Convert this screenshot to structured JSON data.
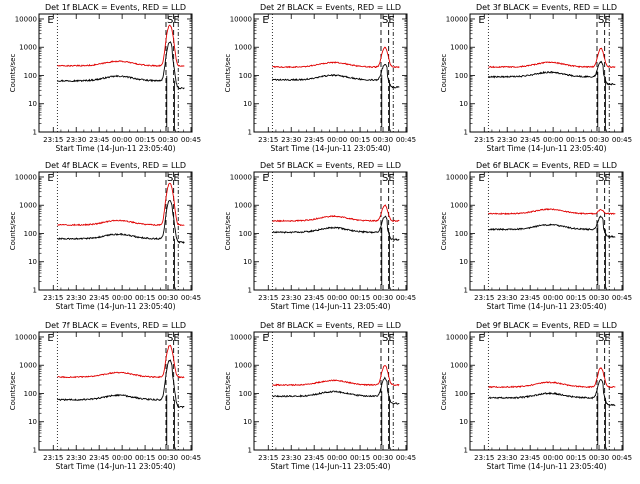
{
  "figure": {
    "xlabel": "Start Time (14-Jun-11 23:05:40)",
    "ylabel": "Counts/sec",
    "x_ticks": [
      "23:15",
      "23:30",
      "23:45",
      "00:00",
      "00:15",
      "00:30",
      "00:45"
    ],
    "y_ticks": [
      "1",
      "10",
      "100",
      "1000",
      "10000"
    ],
    "colors": {
      "events": "#000000",
      "lld": "#e00000",
      "axes": "#000000",
      "background": "#ffffff"
    }
  },
  "chart_data": [
    {
      "type": "line",
      "title": "Det 1f BLACK = Events, RED = LLD",
      "markers": [
        "E",
        "SE"
      ],
      "xlabel": "Start Time (14-Jun-11 23:05:40)",
      "ylabel": "Counts/sec",
      "ylim": [
        1,
        15000
      ],
      "yscale": "log",
      "x_range_minutes": [
        0,
        100
      ],
      "series": [
        {
          "name": "Events",
          "color": "#000000",
          "base": 65,
          "peak": 1500,
          "dip": "deep"
        },
        {
          "name": "LLD",
          "color": "#e00000",
          "base": 220,
          "peak": 6000
        }
      ],
      "x_ticks": [
        "23:15",
        "23:30",
        "23:45",
        "00:00",
        "00:15",
        "00:30",
        "00:45"
      ],
      "vlines_minutes": [
        12,
        83,
        88,
        91
      ]
    },
    {
      "type": "line",
      "title": "Det 2f BLACK = Events, RED = LLD",
      "markers": [
        "E",
        "SE"
      ],
      "xlabel": "Start Time (14-Jun-11 23:05:40)",
      "ylabel": "Counts/sec",
      "ylim": [
        1,
        15000
      ],
      "yscale": "log",
      "x_range_minutes": [
        0,
        100
      ],
      "series": [
        {
          "name": "Events",
          "color": "#000000",
          "base": 70,
          "peak": 250,
          "dip": "deep"
        },
        {
          "name": "LLD",
          "color": "#e00000",
          "base": 200,
          "peak": 1000
        }
      ],
      "x_ticks": [
        "23:15",
        "23:30",
        "23:45",
        "00:00",
        "00:15",
        "00:30",
        "00:45"
      ],
      "vlines_minutes": [
        12,
        83,
        88,
        91
      ]
    },
    {
      "type": "line",
      "title": "Det 3f BLACK = Events, RED = LLD",
      "markers": [
        "E",
        "SE"
      ],
      "xlabel": "Start Time (14-Jun-11 23:05:40)",
      "ylabel": "Counts/sec",
      "ylim": [
        1,
        15000
      ],
      "yscale": "log",
      "x_range_minutes": [
        0,
        100
      ],
      "series": [
        {
          "name": "Events",
          "color": "#000000",
          "base": 90,
          "peak": 300,
          "dip": "deep"
        },
        {
          "name": "LLD",
          "color": "#e00000",
          "base": 200,
          "peak": 900
        }
      ],
      "x_ticks": [
        "23:15",
        "23:30",
        "23:45",
        "00:00",
        "00:15",
        "00:30",
        "00:45"
      ],
      "vlines_minutes": [
        12,
        83,
        88,
        91
      ]
    },
    {
      "type": "line",
      "title": "Det 4f BLACK = Events, RED = LLD",
      "markers": [
        "E",
        "SE"
      ],
      "xlabel": "Start Time (14-Jun-11 23:05:40)",
      "ylabel": "Counts/sec",
      "ylim": [
        1,
        15000
      ],
      "yscale": "log",
      "x_range_minutes": [
        0,
        100
      ],
      "series": [
        {
          "name": "Events",
          "color": "#000000",
          "base": 65,
          "peak": 1500,
          "dip": "mild"
        },
        {
          "name": "LLD",
          "color": "#e00000",
          "base": 200,
          "peak": 6000
        }
      ],
      "x_ticks": [
        "23:15",
        "23:30",
        "23:45",
        "00:00",
        "00:15",
        "00:30",
        "00:45"
      ],
      "vlines_minutes": [
        12,
        83,
        88,
        91
      ]
    },
    {
      "type": "line",
      "title": "Det 5f BLACK = Events, RED = LLD",
      "markers": [
        "E",
        "SE"
      ],
      "xlabel": "Start Time (14-Jun-11 23:05:40)",
      "ylabel": "Counts/sec",
      "ylim": [
        1,
        15000
      ],
      "yscale": "log",
      "x_range_minutes": [
        0,
        100
      ],
      "series": [
        {
          "name": "Events",
          "color": "#000000",
          "base": 110,
          "peak": 400,
          "dip": "deep"
        },
        {
          "name": "LLD",
          "color": "#e00000",
          "base": 280,
          "peak": 1000
        }
      ],
      "x_ticks": [
        "23:15",
        "23:30",
        "23:45",
        "00:00",
        "00:15",
        "00:30",
        "00:45"
      ],
      "vlines_minutes": [
        12,
        83,
        88,
        91
      ]
    },
    {
      "type": "line",
      "title": "Det 6f BLACK = Events, RED = LLD",
      "markers": [
        "E",
        "SE"
      ],
      "xlabel": "Start Time (14-Jun-11 23:05:40)",
      "ylabel": "Counts/sec",
      "ylim": [
        1,
        15000
      ],
      "yscale": "log",
      "x_range_minutes": [
        0,
        100
      ],
      "series": [
        {
          "name": "Events",
          "color": "#000000",
          "base": 140,
          "peak": 400,
          "dip": "deep"
        },
        {
          "name": "LLD",
          "color": "#e00000",
          "base": 500,
          "peak": 700
        }
      ],
      "x_ticks": [
        "23:15",
        "23:30",
        "23:45",
        "00:00",
        "00:15",
        "00:30",
        "00:45"
      ],
      "vlines_minutes": [
        12,
        83,
        88,
        91
      ]
    },
    {
      "type": "line",
      "title": "Det 7f BLACK = Events, RED = LLD",
      "markers": [
        "E",
        "SE"
      ],
      "xlabel": "Start Time (14-Jun-11 23:05:40)",
      "ylabel": "Counts/sec",
      "ylim": [
        1,
        15000
      ],
      "yscale": "log",
      "x_range_minutes": [
        0,
        100
      ],
      "series": [
        {
          "name": "Events",
          "color": "#000000",
          "base": 60,
          "peak": 1500,
          "dip": "deep"
        },
        {
          "name": "LLD",
          "color": "#e00000",
          "base": 380,
          "peak": 5000
        }
      ],
      "x_ticks": [
        "23:15",
        "23:30",
        "23:45",
        "00:00",
        "00:15",
        "00:30",
        "00:45"
      ],
      "vlines_minutes": [
        12,
        83,
        88,
        91
      ]
    },
    {
      "type": "line",
      "title": "Det 8f BLACK = Events, RED = LLD",
      "markers": [
        "E",
        "SE"
      ],
      "xlabel": "Start Time (14-Jun-11 23:05:40)",
      "ylabel": "Counts/sec",
      "ylim": [
        1,
        15000
      ],
      "yscale": "log",
      "x_range_minutes": [
        0,
        100
      ],
      "series": [
        {
          "name": "Events",
          "color": "#000000",
          "base": 80,
          "peak": 350,
          "dip": "deep"
        },
        {
          "name": "LLD",
          "color": "#e00000",
          "base": 200,
          "peak": 1000
        }
      ],
      "x_ticks": [
        "23:15",
        "23:30",
        "23:45",
        "00:00",
        "00:15",
        "00:30",
        "00:45"
      ],
      "vlines_minutes": [
        12,
        83,
        88,
        91
      ]
    },
    {
      "type": "line",
      "title": "Det 9f BLACK = Events, RED = LLD",
      "markers": [
        "E",
        "SE"
      ],
      "xlabel": "Start Time (14-Jun-11 23:05:40)",
      "ylabel": "Counts/sec",
      "ylim": [
        1,
        15000
      ],
      "yscale": "log",
      "x_range_minutes": [
        0,
        100
      ],
      "series": [
        {
          "name": "Events",
          "color": "#000000",
          "base": 70,
          "peak": 300,
          "dip": "deep"
        },
        {
          "name": "LLD",
          "color": "#e00000",
          "base": 170,
          "peak": 800
        }
      ],
      "x_ticks": [
        "23:15",
        "23:30",
        "23:45",
        "00:00",
        "00:15",
        "00:30",
        "00:45"
      ],
      "vlines_minutes": [
        12,
        83,
        88,
        91
      ]
    }
  ]
}
